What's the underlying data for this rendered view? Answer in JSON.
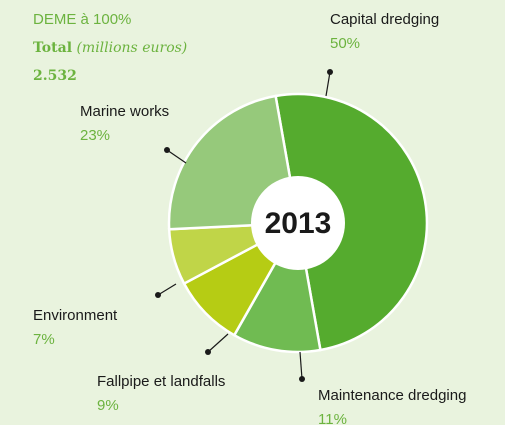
{
  "chart_data": {
    "type": "donut",
    "title": "DEME à 100%",
    "subtitle": {
      "bold": "Total",
      "italic": "(millions euros)"
    },
    "total": "2.532",
    "center_label": "2013",
    "categories": [
      "Capital dredging",
      "Maintenance dredging",
      "Fallpipe et landfalls",
      "Environment",
      "Marine works"
    ],
    "values": [
      50,
      11,
      9,
      7,
      23
    ],
    "value_labels": [
      "50%",
      "11%",
      "9%",
      "7%",
      "23%"
    ],
    "colors": [
      "#55ab2e",
      "#70bb52",
      "#b6cc14",
      "#c0d548",
      "#96c97b"
    ]
  }
}
